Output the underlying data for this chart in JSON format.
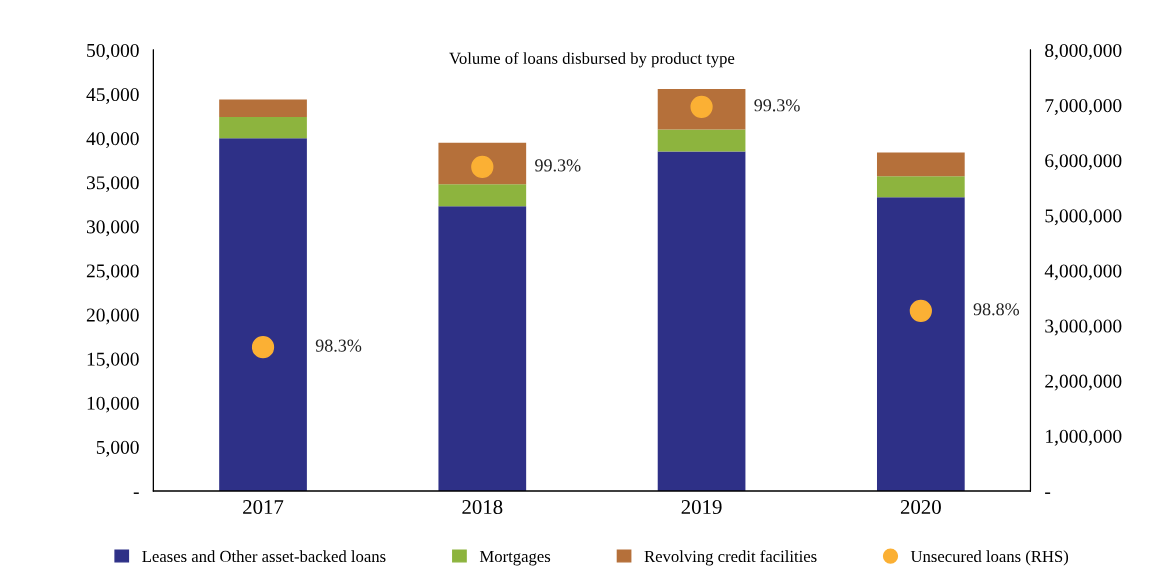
{
  "chart_data": {
    "type": "bar",
    "title": "Volume of loans disbursed by product type",
    "stacked": true,
    "categories": [
      "2017",
      "2018",
      "2019",
      "2020"
    ],
    "series": [
      {
        "name": "Leases and Other asset-backed loans",
        "color": "#2e3087",
        "values": [
          40000,
          32300,
          38500,
          33300
        ]
      },
      {
        "name": "Mortgages",
        "color": "#8db43e",
        "values": [
          2400,
          2500,
          2500,
          2400
        ]
      },
      {
        "name": "Revolving credit facilities",
        "color": "#b5703a",
        "values": [
          2000,
          4700,
          4600,
          2700
        ]
      },
      {
        "name": "Unsecured loans (RHS)",
        "type": "scatter",
        "axis": "y2",
        "marker": "circle",
        "color": "#fbb034",
        "values": [
          2610000,
          5880000,
          6970000,
          3270000
        ]
      }
    ],
    "annotations": [
      "98.3%",
      "99.3%",
      "99.3%",
      "98.8%"
    ],
    "ylim": [
      0,
      50000
    ],
    "yticks": [
      {
        "value": 0,
        "label": "-"
      },
      {
        "value": 5000,
        "label": "5,000"
      },
      {
        "value": 10000,
        "label": "10,000"
      },
      {
        "value": 15000,
        "label": "15,000"
      },
      {
        "value": 20000,
        "label": "20,000"
      },
      {
        "value": 25000,
        "label": "25,000"
      },
      {
        "value": 30000,
        "label": "30,000"
      },
      {
        "value": 35000,
        "label": "35,000"
      },
      {
        "value": 40000,
        "label": "40,000"
      },
      {
        "value": 45000,
        "label": "45,000"
      },
      {
        "value": 50000,
        "label": "50,000"
      }
    ],
    "y2lim": [
      0,
      8000000
    ],
    "y2ticks": [
      {
        "value": 0,
        "label": "-"
      },
      {
        "value": 1000000,
        "label": "1,000,000"
      },
      {
        "value": 2000000,
        "label": "2,000,000"
      },
      {
        "value": 3000000,
        "label": "3,000,000"
      },
      {
        "value": 4000000,
        "label": "4,000,000"
      },
      {
        "value": 5000000,
        "label": "5,000,000"
      },
      {
        "value": 6000000,
        "label": "6,000,000"
      },
      {
        "value": 7000000,
        "label": "7,000,000"
      },
      {
        "value": 8000000,
        "label": "8,000,000"
      }
    ],
    "grid": false,
    "legend": "bottom"
  }
}
